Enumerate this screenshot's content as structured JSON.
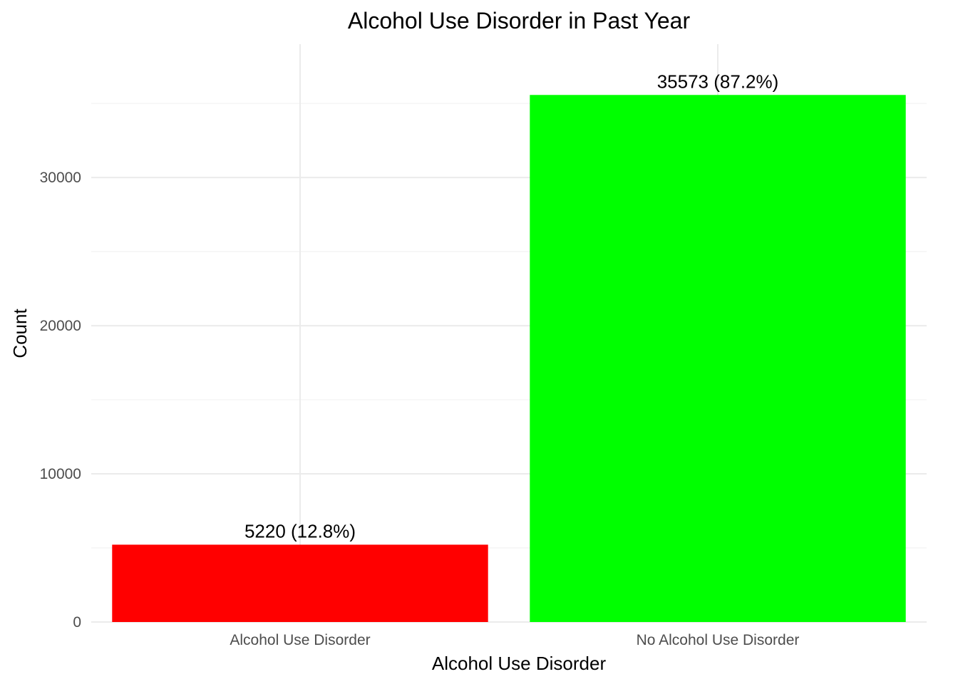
{
  "chart_data": {
    "type": "bar",
    "title": "Alcohol Use Disorder in Past Year",
    "xlabel": "Alcohol Use Disorder",
    "ylabel": "Count",
    "categories": [
      "Alcohol Use Disorder",
      "No Alcohol Use Disorder"
    ],
    "values": [
      5220,
      35573
    ],
    "bar_labels": [
      "5220 (12.8%)",
      "35573 (87.2%)"
    ],
    "colors": [
      "#ff0000",
      "#00ff00"
    ],
    "ylim": [
      0,
      39000
    ],
    "yticks": [
      0,
      10000,
      20000,
      30000
    ],
    "ytick_labels": [
      "0",
      "10000",
      "20000",
      "30000"
    ],
    "minor_yticks": [
      5000,
      15000,
      25000,
      35000
    ],
    "grid": true,
    "legend": "none"
  }
}
